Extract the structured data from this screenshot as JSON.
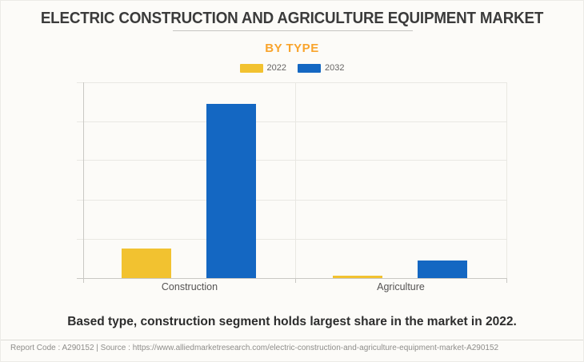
{
  "header": {
    "title": "ELECTRIC CONSTRUCTION AND AGRICULTURE EQUIPMENT MARKET",
    "subtitle": "BY TYPE"
  },
  "chart_data": {
    "type": "bar",
    "categories": [
      "Construction",
      "Agriculture"
    ],
    "series": [
      {
        "name": "2022",
        "color": "#F2C230",
        "values": [
          15,
          1.2
        ]
      },
      {
        "name": "2032",
        "color": "#1467C2",
        "values": [
          89,
          9
        ]
      }
    ],
    "title": "BY TYPE",
    "xlabel": "",
    "ylabel": "",
    "ylim": [
      0,
      100
    ],
    "y_tick_labels_visible": false,
    "grid": true,
    "gridline_intervals": 5,
    "legend_position": "top"
  },
  "caption": {
    "text": "Based type, construction segment holds largest share in the market in 2022."
  },
  "footer": {
    "text": "Report Code : A290152  |  Source : https://www.alliedmarketresearch.com/electric-construction-and-agriculture-equipment-market-A290152"
  },
  "colors": {
    "background": "#FCFBF8",
    "accent_orange": "#F9A42C",
    "series_2022": "#F2C230",
    "series_2032": "#1467C2"
  }
}
